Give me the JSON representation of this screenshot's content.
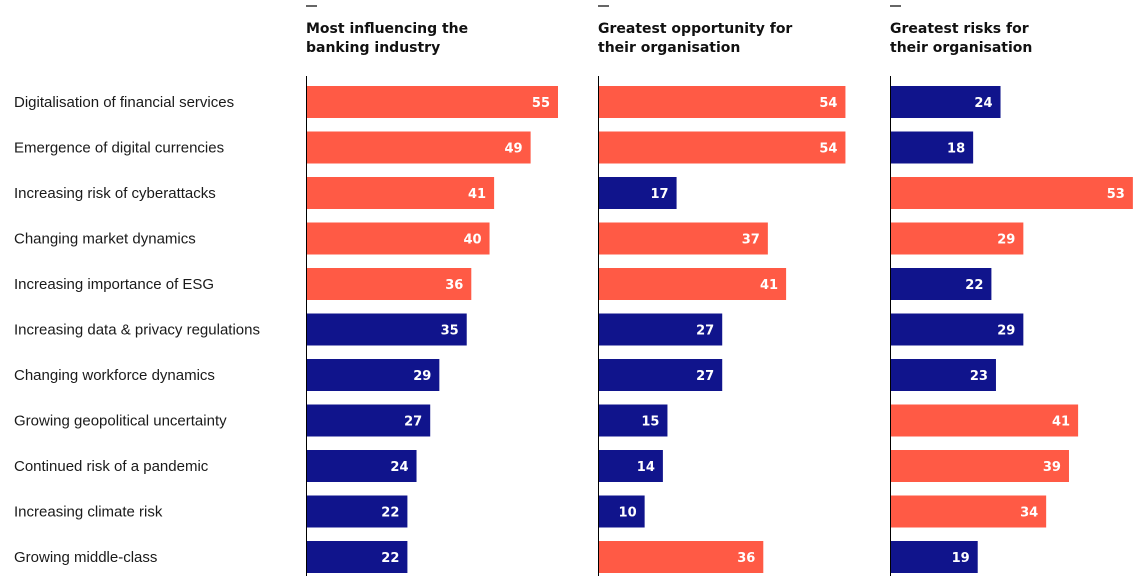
{
  "colors": {
    "highlight": "#ff5a45",
    "other": "#10148c",
    "axis": "#000000",
    "label_text": "#ffffff"
  },
  "chart_data": {
    "type": "bar",
    "orientation": "horizontal",
    "categories": [
      "Digitalisation of financial services",
      "Emergence of digital currencies",
      "Increasing risk of cyberattacks",
      "Changing market dynamics",
      "Increasing importance of ESG",
      "Increasing data & privacy regulations",
      "Changing workforce dynamics",
      "Growing geopolitical uncertainty",
      "Continued risk of a pandemic",
      "Increasing climate risk",
      "Growing middle-class"
    ],
    "xlim": [
      0,
      55
    ],
    "grid": false,
    "legend": "none",
    "panels": [
      {
        "title_lines": [
          "Most influencing the",
          "banking industry"
        ],
        "values": [
          55,
          49,
          41,
          40,
          36,
          35,
          29,
          27,
          24,
          22,
          22
        ],
        "highlighted": [
          true,
          true,
          true,
          true,
          true,
          false,
          false,
          false,
          false,
          false,
          false
        ]
      },
      {
        "title_lines": [
          "Greatest opportunity for",
          "their organisation"
        ],
        "values": [
          54,
          54,
          17,
          37,
          41,
          27,
          27,
          15,
          14,
          10,
          36
        ],
        "highlighted": [
          true,
          true,
          false,
          true,
          true,
          false,
          false,
          false,
          false,
          false,
          true
        ]
      },
      {
        "title_lines": [
          "Greatest risks for",
          "their organisation"
        ],
        "values": [
          24,
          18,
          53,
          29,
          22,
          29,
          23,
          41,
          39,
          34,
          19
        ],
        "highlighted": [
          false,
          false,
          true,
          true,
          false,
          false,
          false,
          true,
          true,
          true,
          false
        ]
      }
    ]
  }
}
